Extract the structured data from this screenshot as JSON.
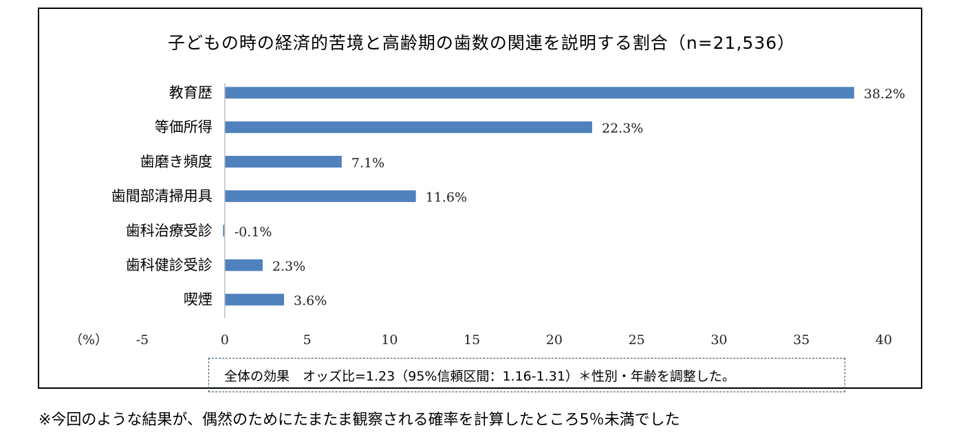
{
  "chart_data": {
    "type": "bar",
    "orientation": "horizontal",
    "title": "子どもの時の経済的苦境と高齢期の歯数の関連を説明する割合（n=21,536）",
    "xlabel": "（%）",
    "ylabel": "",
    "xlim": [
      -5,
      40
    ],
    "xticks": [
      "-5",
      "0",
      "5",
      "10",
      "15",
      "20",
      "25",
      "30",
      "35",
      "40"
    ],
    "grid": false,
    "legend": "none",
    "bar_color": "#4f81bd",
    "categories": [
      "教育歴",
      "等価所得",
      "歯磨き頻度",
      "歯間部清掃用具",
      "歯科治療受診",
      "歯科健診受診",
      "喫煙"
    ],
    "values": [
      38.2,
      22.3,
      7.1,
      11.6,
      -0.1,
      2.3,
      3.6
    ],
    "data_labels": [
      "38.2%",
      "22.3%",
      "7.1%",
      "11.6%",
      "-0.1%",
      "2.3%",
      "3.6%"
    ]
  },
  "note": "全体の効果　オッズ比=1.23（95%信頼区間：1.16-1.31）＊性別・年齢を調整した。",
  "footnote": "※今回のような結果が、偶然のためにたまたま観察される確率を計算したところ5％未満でした"
}
